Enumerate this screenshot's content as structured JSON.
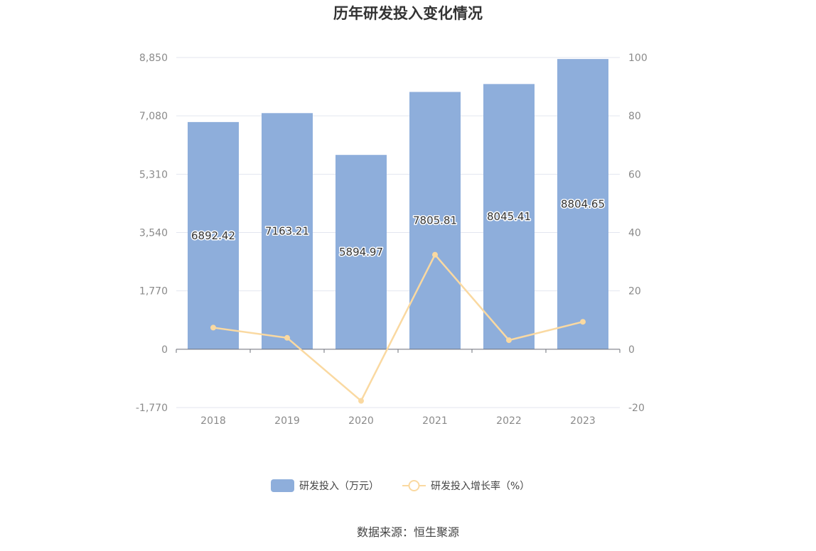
{
  "chart_data": {
    "type": "bar",
    "title": "历年研发投入变化情况",
    "categories": [
      "2018",
      "2019",
      "2020",
      "2021",
      "2022",
      "2023"
    ],
    "series": [
      {
        "name": "研发投入（万元）",
        "type": "bar",
        "axis": "left",
        "color": "#8eaedb",
        "values": [
          6892.42,
          7163.21,
          5894.97,
          7805.81,
          8045.41,
          8804.65
        ]
      },
      {
        "name": "研发投入增长率（%）",
        "type": "line",
        "axis": "right",
        "color": "#fad9a1",
        "values": [
          7.4,
          3.9,
          -17.7,
          32.4,
          3.1,
          9.4
        ]
      }
    ],
    "y_left": {
      "ticks": [
        "8,850",
        "7,080",
        "5,310",
        "3,540",
        "1,770",
        "0",
        "-1,770"
      ],
      "range": [
        -1770,
        8850
      ]
    },
    "y_right": {
      "ticks": [
        "100",
        "80",
        "60",
        "40",
        "20",
        "0",
        "-20"
      ],
      "range": [
        -20,
        100
      ]
    },
    "data_labels": [
      "6892.42",
      "7163.21",
      "5894.97",
      "7805.81",
      "8045.41",
      "8804.65"
    ],
    "grid": true,
    "legend_position": "bottom"
  },
  "source_text": "数据来源：恒生聚源"
}
